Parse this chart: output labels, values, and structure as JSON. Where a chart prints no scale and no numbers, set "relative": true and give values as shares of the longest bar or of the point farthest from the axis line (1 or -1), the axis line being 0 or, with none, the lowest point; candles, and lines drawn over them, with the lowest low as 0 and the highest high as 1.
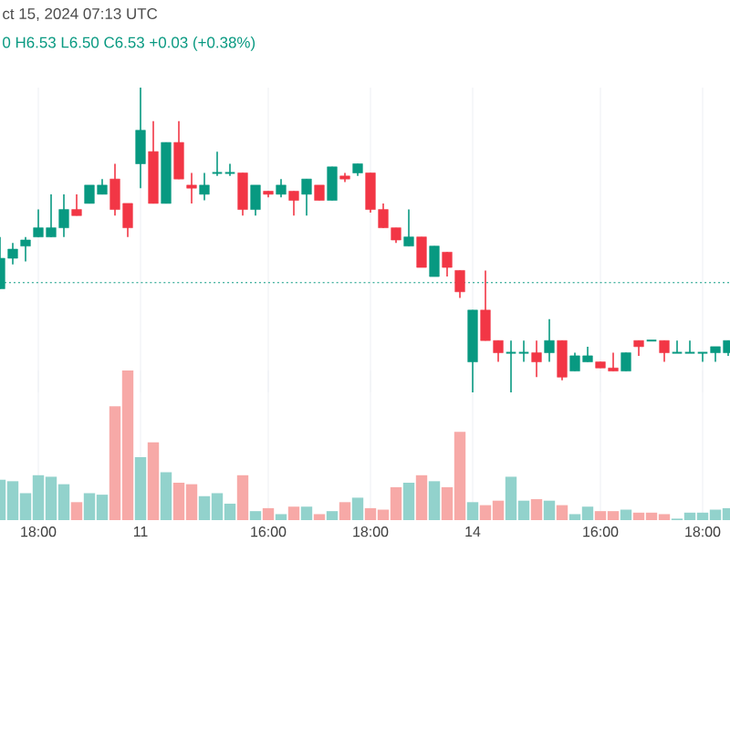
{
  "chart_data": [
    {
      "type": "candlestick",
      "relative": true,
      "tick_labels": false,
      "grid": "x",
      "annotations": [
        "ct 15, 2024 07:13 UTC",
        "0 H6.53 L6.50 C6.53 +0.03 (+0.38%)"
      ],
      "categories": [
        null,
        null,
        null,
        null,
        null,
        null,
        null,
        null,
        null,
        null,
        null,
        null,
        null,
        null,
        null,
        null,
        null,
        null,
        null,
        null,
        null,
        null,
        null,
        null,
        null,
        null,
        null,
        null,
        null,
        null,
        null,
        null,
        null,
        null,
        null,
        null,
        null,
        null,
        null,
        null,
        null,
        null,
        null,
        null,
        null,
        null,
        null,
        null,
        null,
        null,
        null,
        null,
        null,
        null,
        null,
        null,
        null,
        null
      ],
      "ohlc": [
        [
          0.34,
          0.51,
          0.34,
          0.44
        ],
        [
          0.44,
          0.49,
          0.42,
          0.47
        ],
        [
          0.48,
          0.51,
          0.43,
          0.5
        ],
        [
          0.51,
          0.6,
          0.51,
          0.54
        ],
        [
          0.51,
          0.65,
          0.51,
          0.54
        ],
        [
          0.54,
          0.65,
          0.51,
          0.6
        ],
        [
          0.6,
          0.65,
          0.58,
          0.58
        ],
        [
          0.62,
          0.68,
          0.62,
          0.68
        ],
        [
          0.65,
          0.7,
          0.65,
          0.68
        ],
        [
          0.7,
          0.75,
          0.58,
          0.6
        ],
        [
          0.62,
          0.62,
          0.51,
          0.54
        ],
        [
          0.75,
          1.0,
          0.67,
          0.86
        ],
        [
          0.79,
          0.89,
          0.62,
          0.62
        ],
        [
          0.62,
          0.82,
          0.62,
          0.82
        ],
        [
          0.82,
          0.89,
          0.7,
          0.7
        ],
        [
          0.68,
          0.72,
          0.62,
          0.67
        ],
        [
          0.65,
          0.72,
          0.63,
          0.68
        ],
        [
          0.72,
          0.79,
          0.71,
          0.72
        ],
        [
          0.72,
          0.75,
          0.71,
          0.72
        ],
        [
          0.72,
          0.72,
          0.58,
          0.6
        ],
        [
          0.6,
          0.68,
          0.58,
          0.68
        ],
        [
          0.66,
          0.66,
          0.64,
          0.65
        ],
        [
          0.65,
          0.7,
          0.64,
          0.68
        ],
        [
          0.66,
          0.66,
          0.58,
          0.63
        ],
        [
          0.65,
          0.7,
          0.58,
          0.7
        ],
        [
          0.68,
          0.68,
          0.63,
          0.63
        ],
        [
          0.63,
          0.74,
          0.63,
          0.74
        ],
        [
          0.71,
          0.72,
          0.69,
          0.7
        ],
        [
          0.72,
          0.75,
          0.71,
          0.75
        ],
        [
          0.72,
          0.72,
          0.59,
          0.6
        ],
        [
          0.6,
          0.62,
          0.54,
          0.54
        ],
        [
          0.54,
          0.54,
          0.49,
          0.5
        ],
        [
          0.48,
          0.6,
          0.48,
          0.51
        ],
        [
          0.51,
          0.51,
          0.41,
          0.41
        ],
        [
          0.38,
          0.48,
          0.38,
          0.48
        ],
        [
          0.46,
          0.46,
          0.38,
          0.41
        ],
        [
          0.4,
          0.4,
          0.31,
          0.33
        ],
        [
          0.1,
          0.27,
          0.0,
          0.27
        ],
        [
          0.27,
          0.4,
          0.17,
          0.17
        ],
        [
          0.17,
          0.17,
          0.1,
          0.13
        ],
        [
          0.13,
          0.17,
          0.0,
          0.13
        ],
        [
          0.13,
          0.17,
          0.1,
          0.13
        ],
        [
          0.13,
          0.17,
          0.05,
          0.1
        ],
        [
          0.13,
          0.24,
          0.1,
          0.17
        ],
        [
          0.17,
          0.17,
          0.04,
          0.05
        ],
        [
          0.07,
          0.13,
          0.07,
          0.12
        ],
        [
          0.1,
          0.15,
          0.1,
          0.12
        ],
        [
          0.1,
          0.1,
          0.08,
          0.08
        ],
        [
          0.08,
          0.13,
          0.07,
          0.07
        ],
        [
          0.07,
          0.13,
          0.07,
          0.13
        ],
        [
          0.17,
          0.17,
          0.12,
          0.15
        ],
        [
          0.17,
          0.17,
          0.17,
          0.17
        ],
        [
          0.17,
          0.17,
          0.1,
          0.13
        ],
        [
          0.13,
          0.17,
          0.13,
          0.13
        ],
        [
          0.13,
          0.17,
          0.13,
          0.13
        ],
        [
          0.13,
          0.13,
          0.1,
          0.13
        ],
        [
          0.13,
          0.15,
          0.1,
          0.15
        ],
        [
          0.13,
          0.17,
          0.12,
          0.17
        ]
      ],
      "ref_lines": [
        {
          "axis": "y",
          "value": 0.36,
          "color": "#089981",
          "line_style": "dotted"
        }
      ]
    },
    {
      "type": "bar",
      "relative": true,
      "tick_labels": "x",
      "grid": "x",
      "categories": [
        null,
        null,
        null,
        "18:00",
        null,
        null,
        null,
        null,
        null,
        null,
        null,
        "11",
        null,
        null,
        null,
        null,
        null,
        null,
        null,
        null,
        null,
        "16:00",
        null,
        null,
        null,
        null,
        null,
        null,
        null,
        "18:00",
        null,
        null,
        null,
        null,
        null,
        null,
        null,
        "14",
        null,
        null,
        null,
        null,
        null,
        null,
        null,
        null,
        null,
        "16:00",
        null,
        null,
        null,
        null,
        null,
        null,
        null,
        "18:00",
        null,
        null
      ],
      "values": [
        0.27,
        0.26,
        0.18,
        0.3,
        0.29,
        0.24,
        0.12,
        0.18,
        0.17,
        0.76,
        1.0,
        0.42,
        0.52,
        0.32,
        0.25,
        0.24,
        0.16,
        0.18,
        0.11,
        0.3,
        0.06,
        0.08,
        0.04,
        0.09,
        0.09,
        0.04,
        0.06,
        0.12,
        0.15,
        0.08,
        0.07,
        0.22,
        0.25,
        0.3,
        0.26,
        0.22,
        0.59,
        0.12,
        0.1,
        0.13,
        0.29,
        0.13,
        0.14,
        0.13,
        0.1,
        0.04,
        0.09,
        0.06,
        0.06,
        0.07,
        0.05,
        0.05,
        0.04,
        0.01,
        0.05,
        0.05,
        0.07,
        0.08
      ],
      "colors": [
        "#92d2cc",
        "#92d2cc",
        "#92d2cc",
        "#92d2cc",
        "#92d2cc",
        "#92d2cc",
        "#f7a9a7",
        "#92d2cc",
        "#92d2cc",
        "#f7a9a7",
        "#f7a9a7",
        "#92d2cc",
        "#f7a9a7",
        "#92d2cc",
        "#f7a9a7",
        "#f7a9a7",
        "#92d2cc",
        "#92d2cc",
        "#92d2cc",
        "#f7a9a7",
        "#92d2cc",
        "#f7a9a7",
        "#92d2cc",
        "#f7a9a7",
        "#92d2cc",
        "#f7a9a7",
        "#92d2cc",
        "#f7a9a7",
        "#92d2cc",
        "#f7a9a7",
        "#f7a9a7",
        "#f7a9a7",
        "#92d2cc",
        "#f7a9a7",
        "#92d2cc",
        "#f7a9a7",
        "#f7a9a7",
        "#92d2cc",
        "#f7a9a7",
        "#f7a9a7",
        "#92d2cc",
        "#92d2cc",
        "#f7a9a7",
        "#92d2cc",
        "#f7a9a7",
        "#92d2cc",
        "#92d2cc",
        "#f7a9a7",
        "#f7a9a7",
        "#92d2cc",
        "#f7a9a7",
        "#f7a9a7",
        "#f7a9a7",
        "#92d2cc",
        "#92d2cc",
        "#92d2cc",
        "#92d2cc",
        "#92d2cc"
      ]
    }
  ]
}
